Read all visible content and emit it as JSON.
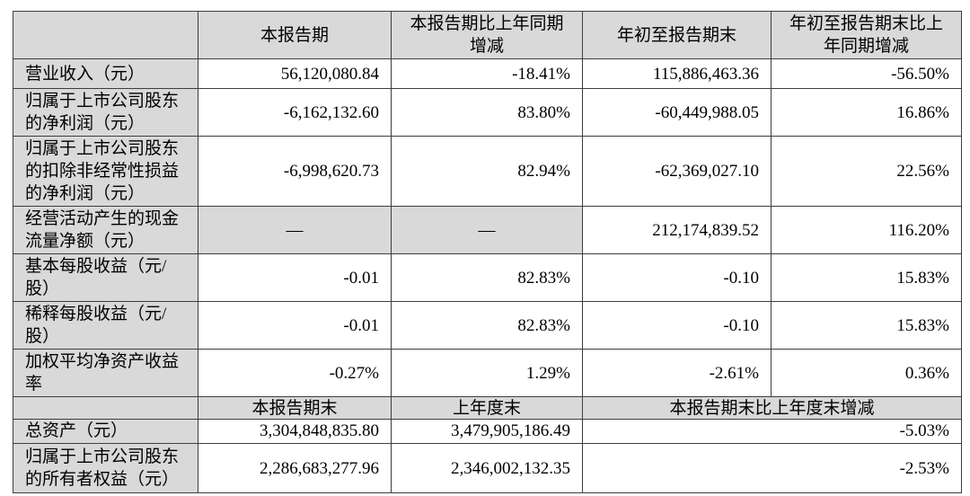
{
  "table": {
    "colors": {
      "header_bg": "#d9d9d9",
      "label_bg": "#d9d9d9",
      "dash_cell_bg": "#d9d9d9",
      "data_cell_bg": "#ffffff",
      "border": "#3d3d3d",
      "text": "#000000"
    },
    "header_row_1": {
      "c1": "本报告期",
      "c2": "本报告期比上年同期增减",
      "c3": "年初至报告期末",
      "c4": "年初至报告期末比上年同期增减"
    },
    "rows_current_period": [
      {
        "label": "营业收入（元）",
        "current": "56,120,080.84",
        "yoy": "-18.41%",
        "ytd": "115,886,463.36",
        "ytd_yoy": "-56.50%"
      },
      {
        "label": "归属于上市公司股东的净利润（元）",
        "current": "-6,162,132.60",
        "yoy": "83.80%",
        "ytd": "-60,449,988.05",
        "ytd_yoy": "16.86%"
      },
      {
        "label": "归属于上市公司股东的扣除非经常性损益的净利润（元）",
        "current": "-6,998,620.73",
        "yoy": "82.94%",
        "ytd": "-62,369,027.10",
        "ytd_yoy": "22.56%"
      },
      {
        "label": "经营活动产生的现金流量净额（元）",
        "current": "—",
        "yoy": "—",
        "ytd": "212,174,839.52",
        "ytd_yoy": "116.20%"
      },
      {
        "label": "基本每股收益（元/股）",
        "current": "-0.01",
        "yoy": "82.83%",
        "ytd": "-0.10",
        "ytd_yoy": "15.83%"
      },
      {
        "label": "稀释每股收益（元/股）",
        "current": "-0.01",
        "yoy": "82.83%",
        "ytd": "-0.10",
        "ytd_yoy": "15.83%"
      },
      {
        "label": "加权平均净资产收益率",
        "current": "-0.27%",
        "yoy": "1.29%",
        "ytd": "-2.61%",
        "ytd_yoy": "0.36%"
      }
    ],
    "header_row_2": {
      "c1": "本报告期末",
      "c2": "上年度末",
      "c3": "本报告期末比上年度末增减"
    },
    "rows_period_end": [
      {
        "label": "总资产（元）",
        "end": "3,304,848,835.80",
        "prior_year_end": "3,479,905,186.49",
        "change": "-5.03%"
      },
      {
        "label": "归属于上市公司股东的所有者权益（元）",
        "end": "2,286,683,277.96",
        "prior_year_end": "2,346,002,132.35",
        "change": "-2.53%"
      }
    ]
  }
}
